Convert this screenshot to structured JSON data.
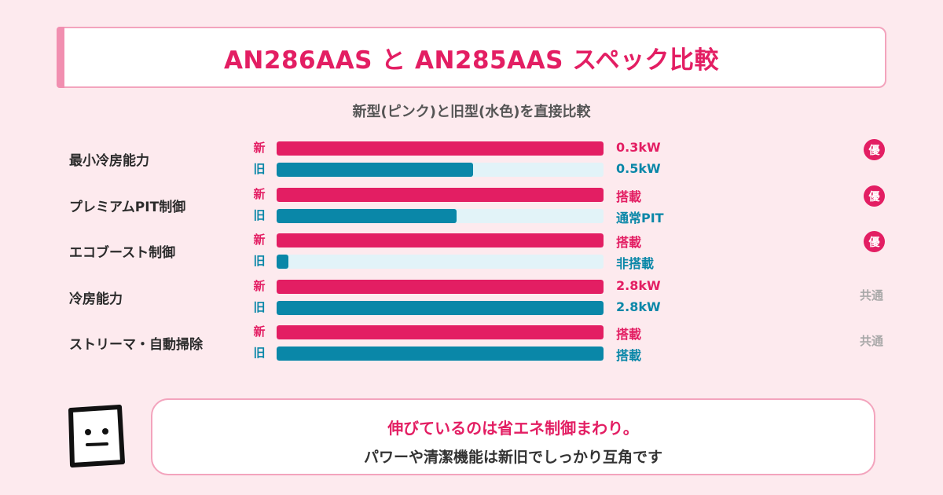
{
  "header": {
    "title": "AN286AAS と AN285AAS スペック比較"
  },
  "chart_data": {
    "type": "bar",
    "title": "AN286AAS と AN285AAS スペック比較",
    "subtitle": "新型(ピンク)と旧型(水色)を直接比較",
    "series": [
      {
        "name": "新",
        "color": "#e31e63"
      },
      {
        "name": "旧",
        "color": "#0a87a8"
      }
    ],
    "rows": [
      {
        "category": "最小冷房能力",
        "new_value": 1.0,
        "new_label": "0.3kW",
        "old_value": 0.6,
        "old_label": "0.5kW",
        "badge": "優",
        "common_text": ""
      },
      {
        "category": "プレミアムPIT制御",
        "new_value": 1.0,
        "new_label": "搭載",
        "old_value": 0.55,
        "old_label": "通常PIT",
        "badge": "優",
        "common_text": ""
      },
      {
        "category": "エコブースト制御",
        "new_value": 1.0,
        "new_label": "搭載",
        "old_value": 0.035,
        "old_label": "非搭載",
        "badge": "優",
        "common_text": ""
      },
      {
        "category": "冷房能力",
        "new_value": 1.0,
        "new_label": "2.8kW",
        "old_value": 1.0,
        "old_label": "2.8kW",
        "badge": "",
        "common_text": "共通"
      },
      {
        "category": "ストリーマ・自動掃除",
        "new_value": 1.0,
        "new_label": "搭載",
        "old_value": 1.0,
        "old_label": "搭載",
        "badge": "",
        "common_text": "共通"
      }
    ]
  },
  "callout": {
    "line1": "伸びているのは省エネ制御まわり。",
    "line2": "パワーや清潔機能は新旧でしっかり互角です"
  }
}
